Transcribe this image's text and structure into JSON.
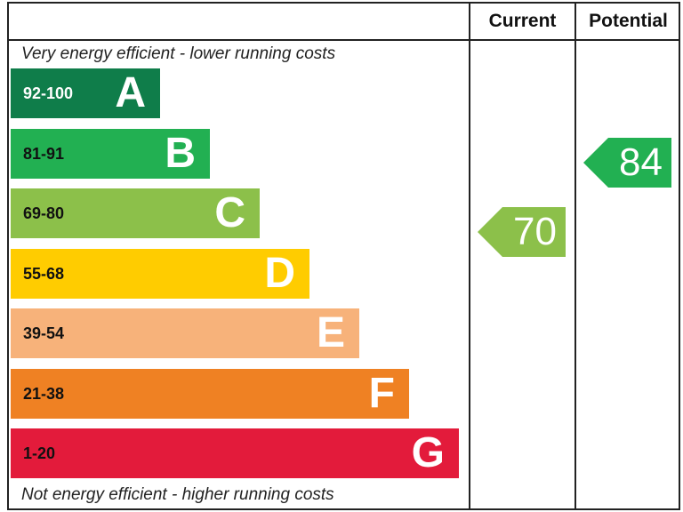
{
  "chart_data": {
    "type": "bar",
    "headers": {
      "current": "Current",
      "potential": "Potential"
    },
    "top_caption": "Very energy efficient - lower running costs",
    "bottom_caption": "Not energy efficient - higher running costs",
    "bands": [
      {
        "letter": "A",
        "range": "92-100",
        "color": "#0f7d4a",
        "text_color": "#ffffff"
      },
      {
        "letter": "B",
        "range": "81-91",
        "color": "#22b052",
        "text_color": "#111111"
      },
      {
        "letter": "C",
        "range": "69-80",
        "color": "#8cc04a",
        "text_color": "#111111"
      },
      {
        "letter": "D",
        "range": "55-68",
        "color": "#ffcc00",
        "text_color": "#111111"
      },
      {
        "letter": "E",
        "range": "39-54",
        "color": "#f7b27a",
        "text_color": "#111111"
      },
      {
        "letter": "F",
        "range": "21-38",
        "color": "#ef8123",
        "text_color": "#111111"
      },
      {
        "letter": "G",
        "range": "1-20",
        "color": "#e31b3b",
        "text_color": "#111111"
      }
    ],
    "current": {
      "value": "70",
      "band": "C",
      "color": "#8cc04a"
    },
    "potential": {
      "value": "84",
      "band": "B",
      "color": "#22b052"
    }
  }
}
